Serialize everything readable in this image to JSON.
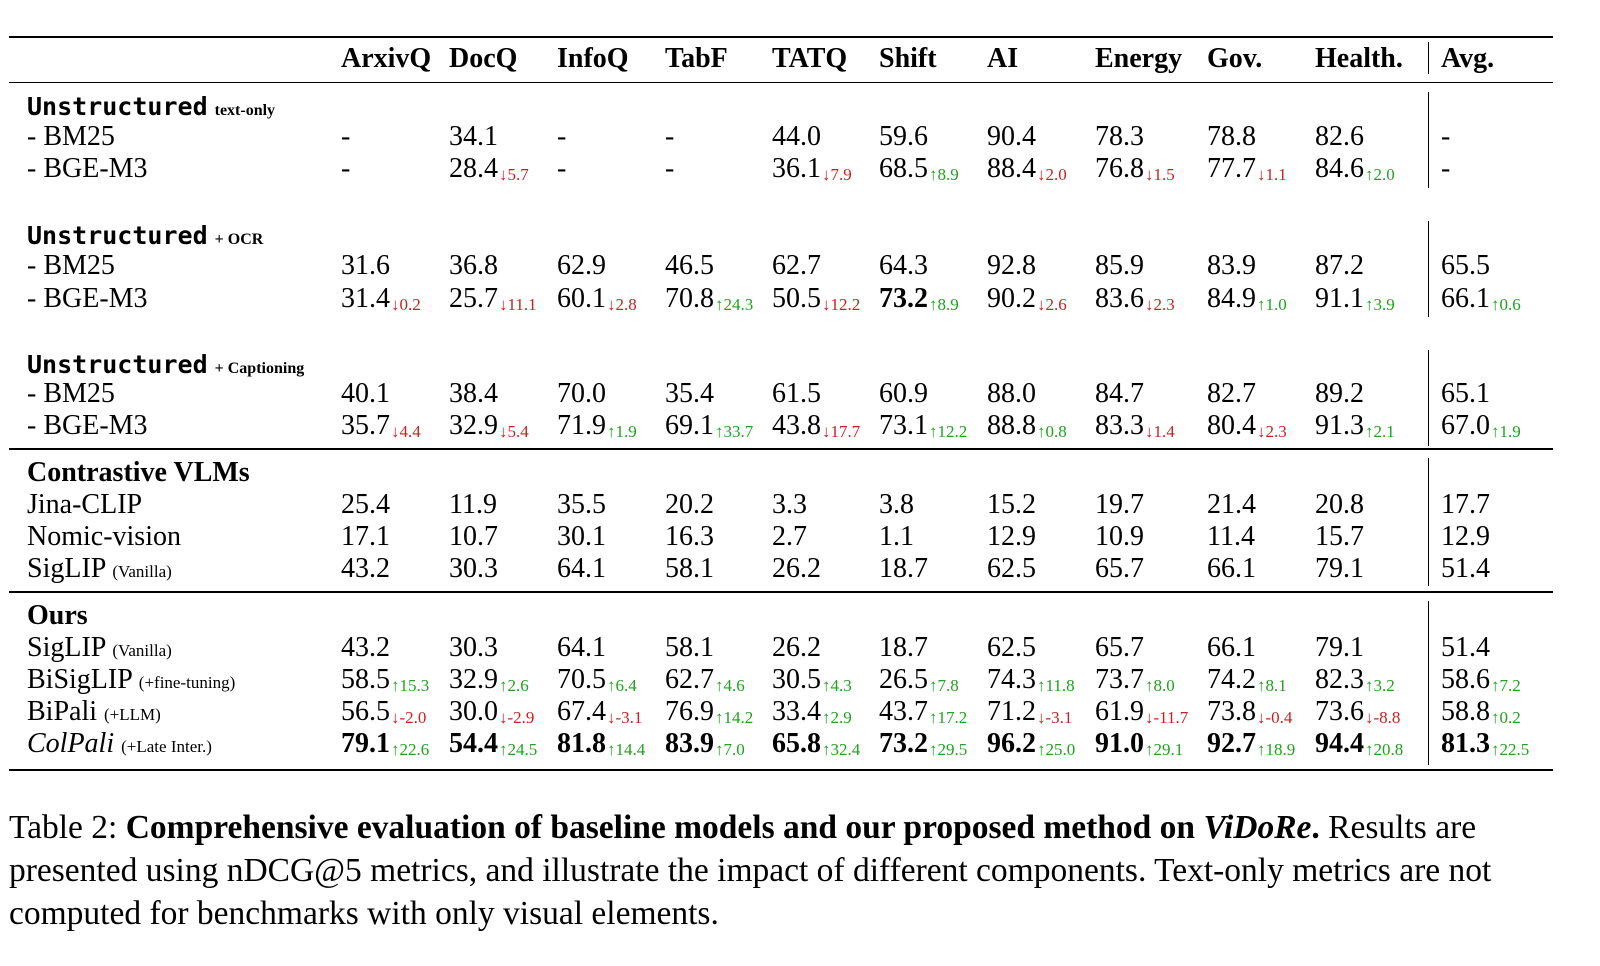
{
  "table": {
    "columns": [
      "ArxivQ",
      "DocQ",
      "InfoQ",
      "TabF",
      "TATQ",
      "Shift",
      "AI",
      "Energy",
      "Gov.",
      "Health.",
      "Avg."
    ],
    "rows": [
      {
        "type": "group",
        "main": "Unstructured",
        "sub": "text-only"
      },
      {
        "label": "- BM25",
        "cells": [
          {
            "v": "-"
          },
          {
            "v": "34.1"
          },
          {
            "v": "-"
          },
          {
            "v": "-"
          },
          {
            "v": "44.0"
          },
          {
            "v": "59.6"
          },
          {
            "v": "90.4"
          },
          {
            "v": "78.3"
          },
          {
            "v": "78.8"
          },
          {
            "v": "82.6"
          },
          {
            "v": "-"
          }
        ]
      },
      {
        "label": "- BGE-M3",
        "cells": [
          {
            "v": "-"
          },
          {
            "v": "28.4",
            "d": "↓5.7",
            "dir": "down"
          },
          {
            "v": "-"
          },
          {
            "v": "-"
          },
          {
            "v": "36.1",
            "d": "↓7.9",
            "dir": "down"
          },
          {
            "v": "68.5",
            "d": "↑8.9",
            "dir": "up"
          },
          {
            "v": "88.4",
            "d": "↓2.0",
            "dir": "down"
          },
          {
            "v": "76.8",
            "d": "↓1.5",
            "dir": "down"
          },
          {
            "v": "77.7",
            "d": "↓1.1",
            "dir": "down"
          },
          {
            "v": "84.6",
            "d": "↑2.0",
            "dir": "up"
          },
          {
            "v": "-"
          }
        ]
      },
      {
        "type": "group",
        "main": "Unstructured",
        "sub": "+ OCR"
      },
      {
        "label": "- BM25",
        "cells": [
          {
            "v": "31.6"
          },
          {
            "v": "36.8"
          },
          {
            "v": "62.9"
          },
          {
            "v": "46.5"
          },
          {
            "v": "62.7"
          },
          {
            "v": "64.3"
          },
          {
            "v": "92.8"
          },
          {
            "v": "85.9"
          },
          {
            "v": "83.9"
          },
          {
            "v": "87.2"
          },
          {
            "v": "65.5"
          }
        ]
      },
      {
        "label": "- BGE-M3",
        "cells": [
          {
            "v": "31.4",
            "d": "↓0.2",
            "dir": "down"
          },
          {
            "v": "25.7",
            "d": "↓11.1",
            "dir": "down"
          },
          {
            "v": "60.1",
            "d": "↓2.8",
            "dir": "down"
          },
          {
            "v": "70.8",
            "d": "↑24.3",
            "dir": "up"
          },
          {
            "v": "50.5",
            "d": "↓12.2",
            "dir": "down"
          },
          {
            "v": "73.2",
            "d": "↑8.9",
            "dir": "up",
            "bold": true
          },
          {
            "v": "90.2",
            "d": "↓2.6",
            "dir": "down"
          },
          {
            "v": "83.6",
            "d": "↓2.3",
            "dir": "down"
          },
          {
            "v": "84.9",
            "d": "↑1.0",
            "dir": "up"
          },
          {
            "v": "91.1",
            "d": "↑3.9",
            "dir": "up"
          },
          {
            "v": "66.1",
            "d": "↑0.6",
            "dir": "up"
          }
        ]
      },
      {
        "type": "group",
        "main": "Unstructured",
        "sub": "+ Captioning"
      },
      {
        "label": "- BM25",
        "cells": [
          {
            "v": "40.1"
          },
          {
            "v": "38.4"
          },
          {
            "v": "70.0"
          },
          {
            "v": "35.4"
          },
          {
            "v": "61.5"
          },
          {
            "v": "60.9"
          },
          {
            "v": "88.0"
          },
          {
            "v": "84.7"
          },
          {
            "v": "82.7"
          },
          {
            "v": "89.2"
          },
          {
            "v": "65.1"
          }
        ]
      },
      {
        "label": "- BGE-M3",
        "cells": [
          {
            "v": "35.7",
            "d": "↓4.4",
            "dir": "down"
          },
          {
            "v": "32.9",
            "d": "↓5.4",
            "dir": "down"
          },
          {
            "v": "71.9",
            "d": "↑1.9",
            "dir": "up"
          },
          {
            "v": "69.1",
            "d": "↑33.7",
            "dir": "up"
          },
          {
            "v": "43.8",
            "d": "↓17.7",
            "dir": "down"
          },
          {
            "v": "73.1",
            "d": "↑12.2",
            "dir": "up"
          },
          {
            "v": "88.8",
            "d": "↑0.8",
            "dir": "up"
          },
          {
            "v": "83.3",
            "d": "↓1.4",
            "dir": "down"
          },
          {
            "v": "80.4",
            "d": "↓2.3",
            "dir": "down"
          },
          {
            "v": "91.3",
            "d": "↑2.1",
            "dir": "up"
          },
          {
            "v": "67.0",
            "d": "↑1.9",
            "dir": "up"
          }
        ]
      },
      {
        "type": "section",
        "main": "Contrastive VLMs"
      },
      {
        "label": "Jina-CLIP",
        "cells": [
          {
            "v": "25.4"
          },
          {
            "v": "11.9"
          },
          {
            "v": "35.5"
          },
          {
            "v": "20.2"
          },
          {
            "v": "3.3"
          },
          {
            "v": "3.8"
          },
          {
            "v": "15.2"
          },
          {
            "v": "19.7"
          },
          {
            "v": "21.4"
          },
          {
            "v": "20.8"
          },
          {
            "v": "17.7"
          }
        ]
      },
      {
        "label": "Nomic-vision",
        "cells": [
          {
            "v": "17.1"
          },
          {
            "v": "10.7"
          },
          {
            "v": "30.1"
          },
          {
            "v": "16.3"
          },
          {
            "v": "2.7"
          },
          {
            "v": "1.1"
          },
          {
            "v": "12.9"
          },
          {
            "v": "10.9"
          },
          {
            "v": "11.4"
          },
          {
            "v": "15.7"
          },
          {
            "v": "12.9"
          }
        ]
      },
      {
        "label": "SigLIP",
        "note": "(Vanilla)",
        "cells": [
          {
            "v": "43.2"
          },
          {
            "v": "30.3"
          },
          {
            "v": "64.1"
          },
          {
            "v": "58.1"
          },
          {
            "v": "26.2"
          },
          {
            "v": "18.7"
          },
          {
            "v": "62.5"
          },
          {
            "v": "65.7"
          },
          {
            "v": "66.1"
          },
          {
            "v": "79.1"
          },
          {
            "v": "51.4"
          }
        ]
      },
      {
        "type": "section",
        "main": "Ours"
      },
      {
        "label": "SigLIP",
        "note": "(Vanilla)",
        "cells": [
          {
            "v": "43.2"
          },
          {
            "v": "30.3"
          },
          {
            "v": "64.1"
          },
          {
            "v": "58.1"
          },
          {
            "v": "26.2"
          },
          {
            "v": "18.7"
          },
          {
            "v": "62.5"
          },
          {
            "v": "65.7"
          },
          {
            "v": "66.1"
          },
          {
            "v": "79.1"
          },
          {
            "v": "51.4"
          }
        ]
      },
      {
        "label": "BiSigLIP",
        "note": "(+fine-tuning)",
        "cells": [
          {
            "v": "58.5",
            "d": "↑15.3",
            "dir": "up"
          },
          {
            "v": "32.9",
            "d": "↑2.6",
            "dir": "up"
          },
          {
            "v": "70.5",
            "d": "↑6.4",
            "dir": "up"
          },
          {
            "v": "62.7",
            "d": "↑4.6",
            "dir": "up"
          },
          {
            "v": "30.5",
            "d": "↑4.3",
            "dir": "up"
          },
          {
            "v": "26.5",
            "d": "↑7.8",
            "dir": "up"
          },
          {
            "v": "74.3",
            "d": "↑11.8",
            "dir": "up"
          },
          {
            "v": "73.7",
            "d": "↑8.0",
            "dir": "up"
          },
          {
            "v": "74.2",
            "d": "↑8.1",
            "dir": "up"
          },
          {
            "v": "82.3",
            "d": "↑3.2",
            "dir": "up"
          },
          {
            "v": "58.6",
            "d": "↑7.2",
            "dir": "up"
          }
        ]
      },
      {
        "label": "BiPali",
        "note": "(+LLM)",
        "cells": [
          {
            "v": "56.5",
            "d": "↓-2.0",
            "dir": "down"
          },
          {
            "v": "30.0",
            "d": "↓-2.9",
            "dir": "down"
          },
          {
            "v": "67.4",
            "d": "↓-3.1",
            "dir": "down"
          },
          {
            "v": "76.9",
            "d": "↑14.2",
            "dir": "up"
          },
          {
            "v": "33.4",
            "d": "↑2.9",
            "dir": "up"
          },
          {
            "v": "43.7",
            "d": "↑17.2",
            "dir": "up"
          },
          {
            "v": "71.2",
            "d": "↓-3.1",
            "dir": "down"
          },
          {
            "v": "61.9",
            "d": "↓-11.7",
            "dir": "down"
          },
          {
            "v": "73.8",
            "d": "↓-0.4",
            "dir": "down"
          },
          {
            "v": "73.6",
            "d": "↓-8.8",
            "dir": "down"
          },
          {
            "v": "58.8",
            "d": "↑0.2",
            "dir": "up"
          }
        ]
      },
      {
        "label": "ColPali",
        "note": "(+Late Inter.)",
        "italic": true,
        "cells": [
          {
            "v": "79.1",
            "d": "↑22.6",
            "dir": "up",
            "bold": true
          },
          {
            "v": "54.4",
            "d": "↑24.5",
            "dir": "up",
            "bold": true
          },
          {
            "v": "81.8",
            "d": "↑14.4",
            "dir": "up",
            "bold": true
          },
          {
            "v": "83.9",
            "d": "↑7.0",
            "dir": "up",
            "bold": true
          },
          {
            "v": "65.8",
            "d": "↑32.4",
            "dir": "up",
            "bold": true
          },
          {
            "v": "73.2",
            "d": "↑29.5",
            "dir": "up",
            "bold": true
          },
          {
            "v": "96.2",
            "d": "↑25.0",
            "dir": "up",
            "bold": true
          },
          {
            "v": "91.0",
            "d": "↑29.1",
            "dir": "up",
            "bold": true
          },
          {
            "v": "92.7",
            "d": "↑18.9",
            "dir": "up",
            "bold": true
          },
          {
            "v": "94.4",
            "d": "↑20.8",
            "dir": "up",
            "bold": true
          },
          {
            "v": "81.3",
            "d": "↑22.5",
            "dir": "up",
            "bold": true
          }
        ]
      }
    ]
  },
  "caption": {
    "prefix": "Table 2: ",
    "bold": "Comprehensive evaluation of baseline models and our proposed method on ",
    "bold_italic": "ViDoRe",
    "bold_end": ".",
    "body": "Results are presented using nDCG@5 metrics, and illustrate the impact of different components. Text-only metrics are not computed for benchmarks with only visual elements."
  },
  "colors": {
    "up": "#1fa31f",
    "down": "#cc1f1f"
  }
}
